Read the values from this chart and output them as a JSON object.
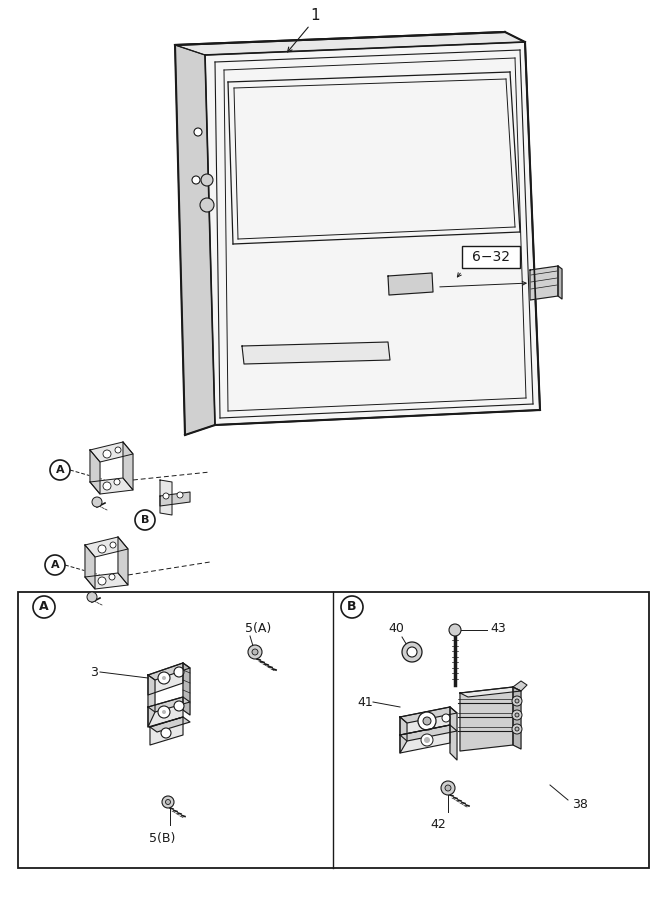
{
  "bg_color": "#ffffff",
  "line_color": "#1a1a1a",
  "gray1": "#e8e8e8",
  "gray2": "#d0d0d0",
  "gray3": "#b8b8b8",
  "label_1": "1",
  "label_6_32": "6−32",
  "label_A": "A",
  "label_B": "B",
  "label_3": "3",
  "label_5A": "5(A)",
  "label_5B": "5(B)",
  "label_38": "38",
  "label_40": "40",
  "label_41": "41",
  "label_42": "42",
  "label_43": "43"
}
